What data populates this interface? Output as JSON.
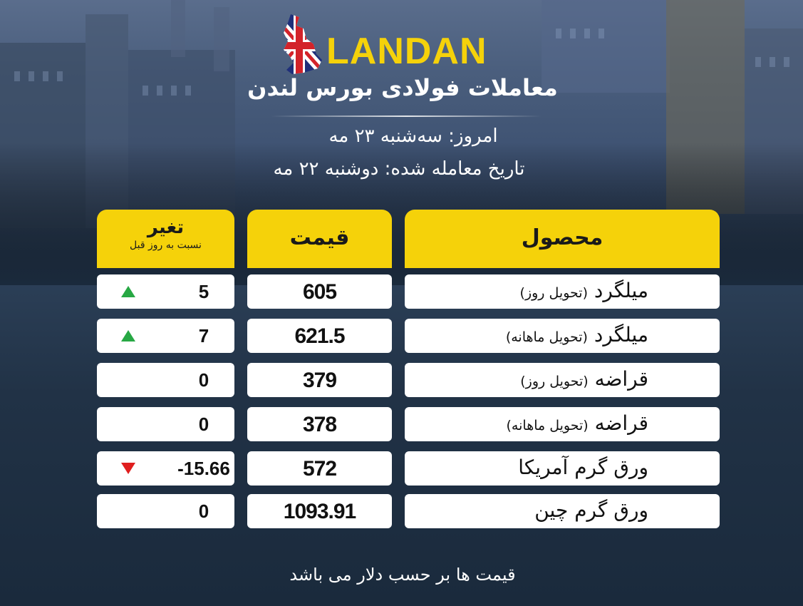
{
  "header": {
    "brand": "LANDAN",
    "subtitle": "معاملات فولادی بورس لندن",
    "today": "امروز: سه‌شنبه ۲۳ مه",
    "trade_date": "تاریخ معامله شده: دوشنبه ۲۲ مه"
  },
  "table": {
    "columns": {
      "change": "تغیر",
      "change_note": "نسبت به روز قبل",
      "price": "قیمت",
      "product": "محصول"
    },
    "rows": [
      {
        "product": "میلگرد",
        "detail": "(تحویل روز)",
        "price": "605",
        "change": "5",
        "trend": "up"
      },
      {
        "product": "میلگرد",
        "detail": "(تحویل ماهانه)",
        "price": "621.5",
        "change": "7",
        "trend": "up"
      },
      {
        "product": "قراضه",
        "detail": "(تحویل روز)",
        "price": "379",
        "change": "0",
        "trend": "none"
      },
      {
        "product": "قراضه",
        "detail": "(تحویل ماهانه)",
        "price": "378",
        "change": "0",
        "trend": "none"
      },
      {
        "product": "ورق گرم آمریکا",
        "detail": "",
        "price": "572",
        "change": "-15.66",
        "trend": "down"
      },
      {
        "product": "ورق گرم چین",
        "detail": "",
        "price": "1093.91",
        "change": "0",
        "trend": "none"
      }
    ]
  },
  "footer": "قیمت ها بر حسب دلار می باشد",
  "colors": {
    "accent": "#f5d20a",
    "up": "#27a844",
    "down": "#e01e1e"
  },
  "icons": {
    "logo": "uk-flag-map-icon",
    "up": "triangle-up-icon",
    "down": "triangle-down-icon"
  }
}
